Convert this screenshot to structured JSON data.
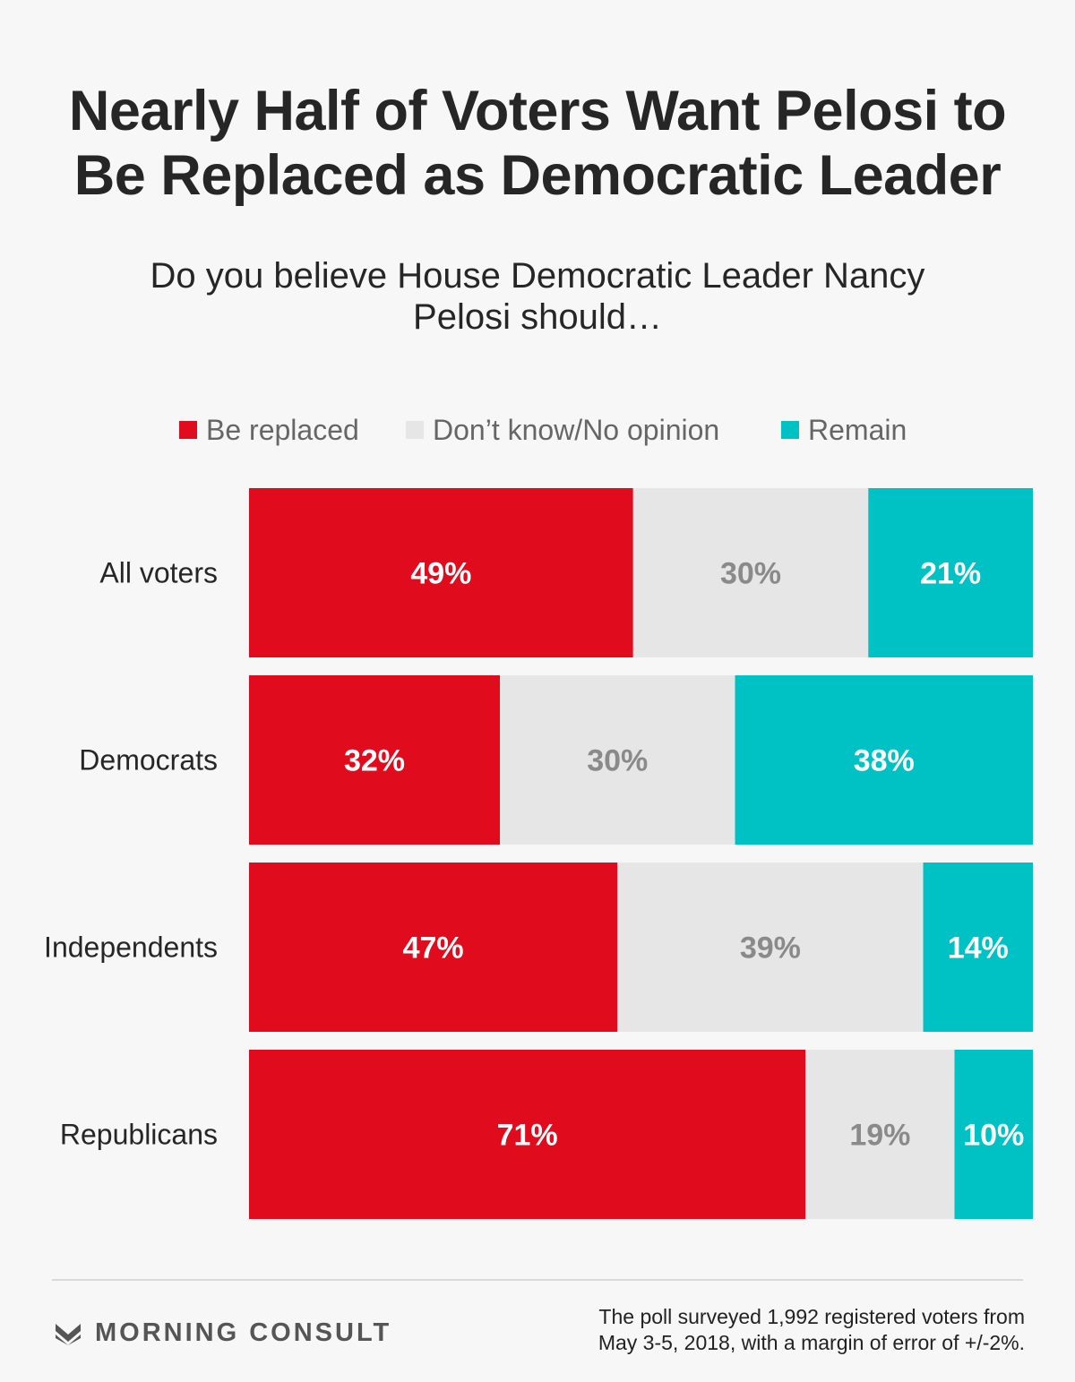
{
  "chart_data": {
    "type": "bar",
    "orientation": "horizontal",
    "stacked": true,
    "title_lines": [
      "Nearly Half of Voters Want Pelosi to",
      "Be Replaced as Democratic Leader"
    ],
    "subtitle_lines": [
      "Do you believe House Democratic Leader Nancy",
      "Pelosi should…"
    ],
    "categories": [
      "All voters",
      "Democrats",
      "Independents",
      "Republicans"
    ],
    "series": [
      {
        "name": "Be replaced",
        "values": [
          49,
          32,
          47,
          71
        ],
        "color": "#e00b1c",
        "label_color": "#ffffff"
      },
      {
        "name": "Don’t know/No opinion",
        "values": [
          30,
          30,
          39,
          19
        ],
        "color": "#e6e6e6",
        "label_color": "#8a8a8a"
      },
      {
        "name": "Remain",
        "values": [
          21,
          38,
          14,
          10
        ],
        "color": "#00c2c4",
        "label_color": "#ffffff"
      }
    ],
    "value_suffix": "%",
    "xlim": [
      0,
      100
    ],
    "legend_position": "top",
    "grid": false
  },
  "footer": {
    "brand": "MORNING CONSULT",
    "source_lines": [
      "The poll surveyed 1,992 registered voters from",
      "May 3-5, 2018, with a margin of error of +/-2%."
    ]
  },
  "icons": {
    "brand_logo": "morning-consult-logo-icon"
  }
}
